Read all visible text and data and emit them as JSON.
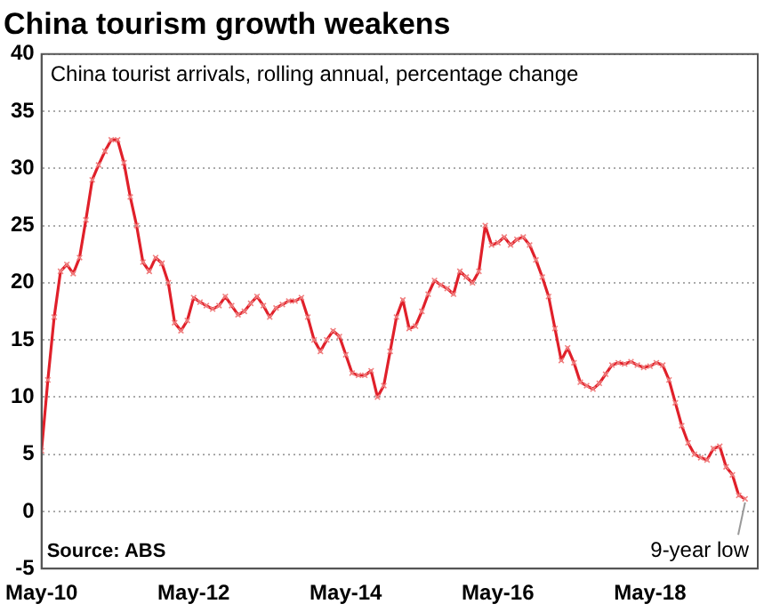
{
  "chart_data": {
    "type": "line",
    "title": "China tourism growth weakens",
    "subtitle": "China tourist arrivals, rolling annual, percentage change",
    "x": [
      "2010-05",
      "2010-06",
      "2010-07",
      "2010-08",
      "2010-09",
      "2010-10",
      "2010-11",
      "2010-12",
      "2011-01",
      "2011-02",
      "2011-03",
      "2011-04",
      "2011-05",
      "2011-06",
      "2011-07",
      "2011-08",
      "2011-09",
      "2011-10",
      "2011-11",
      "2011-12",
      "2012-01",
      "2012-02",
      "2012-03",
      "2012-04",
      "2012-05",
      "2012-06",
      "2012-07",
      "2012-08",
      "2012-09",
      "2012-10",
      "2012-11",
      "2012-12",
      "2013-01",
      "2013-02",
      "2013-03",
      "2013-04",
      "2013-05",
      "2013-06",
      "2013-07",
      "2013-08",
      "2013-09",
      "2013-10",
      "2013-11",
      "2013-12",
      "2014-01",
      "2014-02",
      "2014-03",
      "2014-04",
      "2014-05",
      "2014-06",
      "2014-07",
      "2014-08",
      "2014-09",
      "2014-10",
      "2014-11",
      "2014-12",
      "2015-01",
      "2015-02",
      "2015-03",
      "2015-04",
      "2015-05",
      "2015-06",
      "2015-07",
      "2015-08",
      "2015-09",
      "2015-10",
      "2015-11",
      "2015-12",
      "2016-01",
      "2016-02",
      "2016-03",
      "2016-04",
      "2016-05",
      "2016-06",
      "2016-07",
      "2016-08",
      "2016-09",
      "2016-10",
      "2016-11",
      "2016-12",
      "2017-01",
      "2017-02",
      "2017-03",
      "2017-04",
      "2017-05",
      "2017-06",
      "2017-07",
      "2017-08",
      "2017-09",
      "2017-10",
      "2017-11",
      "2017-12",
      "2018-01",
      "2018-02",
      "2018-03",
      "2018-04",
      "2018-05",
      "2018-06",
      "2018-07",
      "2018-08",
      "2018-09",
      "2018-10",
      "2018-11",
      "2018-12",
      "2019-01",
      "2019-02",
      "2019-03",
      "2019-04",
      "2019-05",
      "2019-06",
      "2019-07",
      "2019-08"
    ],
    "series": [
      {
        "color": "#e0202a",
        "values": [
          5.3,
          11.5,
          17,
          21,
          21.6,
          20.8,
          22.2,
          25.5,
          29,
          30.3,
          31.5,
          32.5,
          32.5,
          30.5,
          27.5,
          25,
          21.8,
          21,
          22.2,
          21.7,
          20,
          16.5,
          15.8,
          16.7,
          18.7,
          18.3,
          18,
          17.7,
          18,
          18.8,
          18,
          17.2,
          17.5,
          18.2,
          18.8,
          18,
          17,
          17.8,
          18.1,
          18.4,
          18.4,
          18.7,
          17,
          15,
          14,
          15,
          15.8,
          15.3,
          13.7,
          12.1,
          11.9,
          11.9,
          12.3,
          10,
          11,
          14,
          17,
          18.5,
          16,
          16.2,
          17.5,
          19,
          20.2,
          19.8,
          19.5,
          19,
          21,
          20.5,
          20,
          21,
          25,
          23.3,
          23.5,
          24,
          23.3,
          23.8,
          24,
          23.3,
          22,
          20.5,
          18.8,
          16,
          13.2,
          14.3,
          13,
          11.3,
          11,
          10.7,
          11.2,
          12,
          12.8,
          13,
          12.9,
          13.1,
          12.8,
          12.6,
          12.7,
          13,
          12.8,
          11.5,
          9.5,
          7.5,
          6,
          5,
          4.7,
          4.5,
          5.5,
          5.7,
          3.9,
          3.2,
          1.4,
          1.1
        ]
      }
    ],
    "xlim": [
      "2010-05",
      "2019-10"
    ],
    "xticks": [
      {
        "value": "2010-05",
        "label": "May-10"
      },
      {
        "value": "2012-05",
        "label": "May-12"
      },
      {
        "value": "2014-05",
        "label": "May-14"
      },
      {
        "value": "2016-05",
        "label": "May-16"
      },
      {
        "value": "2018-05",
        "label": "May-18"
      }
    ],
    "ylim": [
      -5,
      40
    ],
    "yticks": [
      -5,
      0,
      5,
      10,
      15,
      20,
      25,
      30,
      35,
      40
    ],
    "grid": "y",
    "marker": "cross",
    "line_style": "solid",
    "legend": false,
    "annotations": [
      "Source: ABS",
      {
        "text": "9-year low",
        "x": "2019-08",
        "y": 1.1
      }
    ]
  }
}
